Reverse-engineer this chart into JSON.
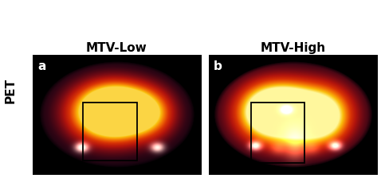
{
  "title_left": "MTV-Low",
  "title_right": "MTV-High",
  "ylabel": "PET",
  "label_a": "a",
  "label_b": "b",
  "bg_color": "#ffffff",
  "label_color": "#ffffff",
  "title_color": "#000000",
  "box_color": "#000000",
  "figsize": [
    4.78,
    2.29
  ],
  "dpi": 100
}
